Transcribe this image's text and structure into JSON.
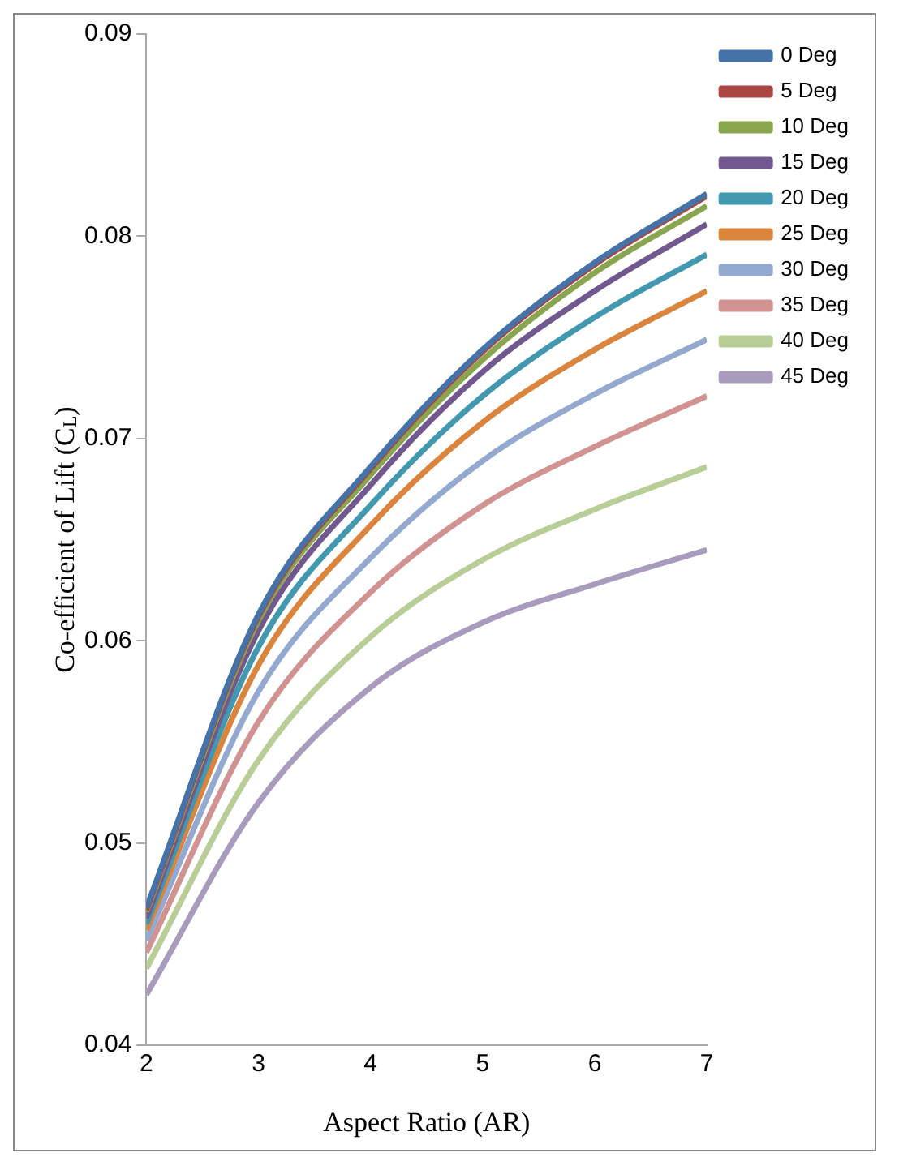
{
  "chart_data": {
    "type": "line",
    "xlabel": "Aspect Ratio (AR)",
    "ylabel": "Co-efficient of Lift (C$_{L}$)",
    "x": [
      2,
      3,
      4,
      5,
      6,
      7
    ],
    "xlim": [
      2,
      7
    ],
    "xticks": [
      2,
      3,
      4,
      5,
      6,
      7
    ],
    "ylim": [
      0.04,
      0.09
    ],
    "yticks": [
      0.04,
      0.05,
      0.06,
      0.07,
      0.08,
      0.09
    ],
    "grid": false,
    "legend": "right",
    "marker": "none",
    "line_style": "solid",
    "series": [
      {
        "name": "0 Deg",
        "color": "#4572a7",
        "values": [
          0.0468,
          0.0613,
          0.0686,
          0.0744,
          0.0787,
          0.0821
        ]
      },
      {
        "name": "5 Deg",
        "color": "#aa4643",
        "values": [
          0.0467,
          0.0612,
          0.0685,
          0.0743,
          0.0786,
          0.082
        ]
      },
      {
        "name": "10 Deg",
        "color": "#89a54e",
        "values": [
          0.0466,
          0.061,
          0.0682,
          0.0739,
          0.0782,
          0.0815
        ]
      },
      {
        "name": "15 Deg",
        "color": "#71588f",
        "values": [
          0.0463,
          0.0605,
          0.0677,
          0.0733,
          0.0773,
          0.0806
        ]
      },
      {
        "name": "20 Deg",
        "color": "#4198af",
        "values": [
          0.046,
          0.0597,
          0.0667,
          0.0721,
          0.076,
          0.0791
        ]
      },
      {
        "name": "25 Deg",
        "color": "#db843d",
        "values": [
          0.0457,
          0.0588,
          0.0657,
          0.0708,
          0.0744,
          0.0773
        ]
      },
      {
        "name": "30 Deg",
        "color": "#93a9cf",
        "values": [
          0.0452,
          0.0575,
          0.0641,
          0.0689,
          0.0722,
          0.0749
        ]
      },
      {
        "name": "35 Deg",
        "color": "#d19392",
        "values": [
          0.0446,
          0.056,
          0.0624,
          0.0667,
          0.0696,
          0.0721
        ]
      },
      {
        "name": "40 Deg",
        "color": "#b9cd96",
        "values": [
          0.0438,
          0.0541,
          0.0602,
          0.064,
          0.0665,
          0.0686
        ]
      },
      {
        "name": "45 Deg",
        "color": "#a99bbd",
        "values": [
          0.0425,
          0.052,
          0.0577,
          0.0609,
          0.0628,
          0.0645
        ]
      }
    ]
  }
}
